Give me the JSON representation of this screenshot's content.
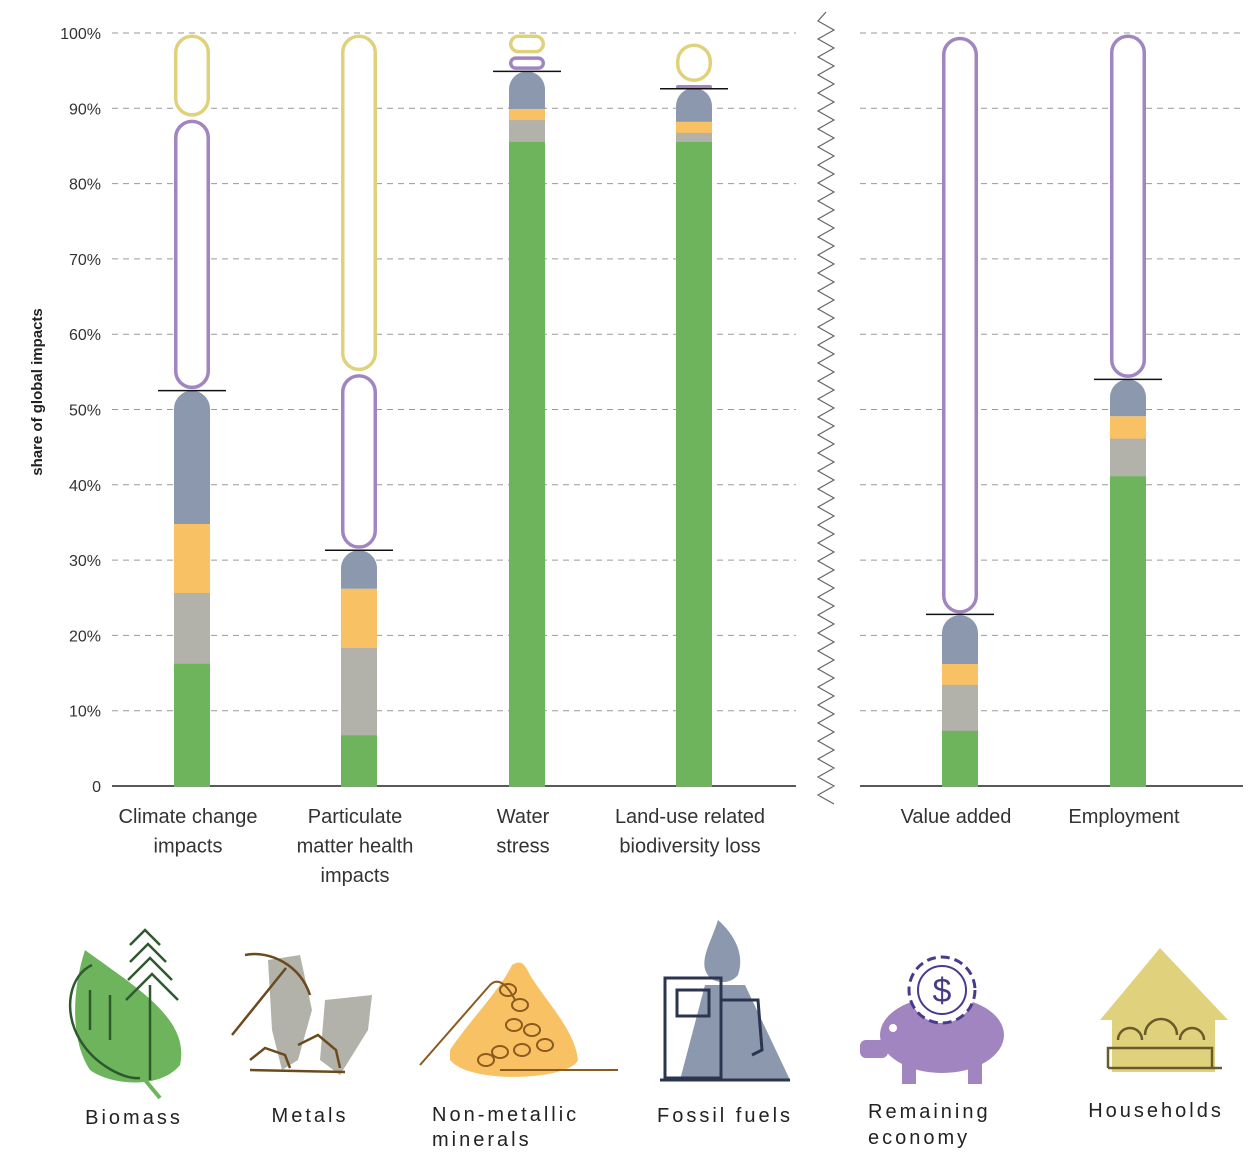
{
  "chart_data": {
    "type": "bar",
    "stacked": true,
    "ylabel": "share of global impacts",
    "ylim": [
      0,
      100
    ],
    "yticks": [
      "0",
      "10%",
      "20%",
      "30%",
      "40%",
      "50%",
      "60%",
      "70%",
      "80%",
      "90%",
      "100%"
    ],
    "grid": true,
    "categories": [
      [
        "Climate change",
        "impacts"
      ],
      [
        "Particulate",
        "matter health",
        "impacts"
      ],
      [
        "Water",
        "stress"
      ],
      [
        "Land-use related",
        "biodiversity loss"
      ],
      [
        "Value added"
      ],
      [
        "Employment"
      ]
    ],
    "series": [
      {
        "name": "Biomass",
        "color": "#6eb45c",
        "style": "solid",
        "values": [
          16.3,
          6.8,
          85.6,
          85.6,
          7.4,
          41.2
        ]
      },
      {
        "name": "Metals",
        "color": "#b3b2aa",
        "style": "solid",
        "values": [
          9.4,
          11.6,
          2.9,
          1.2,
          6.1,
          5.0
        ]
      },
      {
        "name": "Non-metallic minerals",
        "color": "#f8c264",
        "style": "solid",
        "values": [
          9.1,
          7.8,
          1.4,
          1.4,
          2.7,
          2.9
        ]
      },
      {
        "name": "Fossil fuels",
        "color": "#8b98ae",
        "style": "solid",
        "values": [
          17.7,
          5.1,
          5.0,
          4.5,
          6.5,
          4.9
        ]
      },
      {
        "name": "Remaining economy",
        "color": "#a185c0",
        "style": "outline",
        "values": [
          36.2,
          23.6,
          2.2,
          0.6,
          77.0,
          46.0
        ]
      },
      {
        "name": "Households",
        "color": "#e0d27c",
        "style": "outline",
        "values": [
          11.3,
          45.1,
          2.9,
          5.5,
          0.0,
          0.0
        ]
      }
    ],
    "markers": [
      52.5,
      31.3,
      94.9,
      92.6,
      22.8,
      54.0
    ],
    "legend": [
      "Biomass",
      "Metals",
      [
        "Non-metallic",
        "minerals"
      ],
      "Fossil fuels",
      [
        "Remaining",
        "economy"
      ],
      "Households"
    ]
  }
}
